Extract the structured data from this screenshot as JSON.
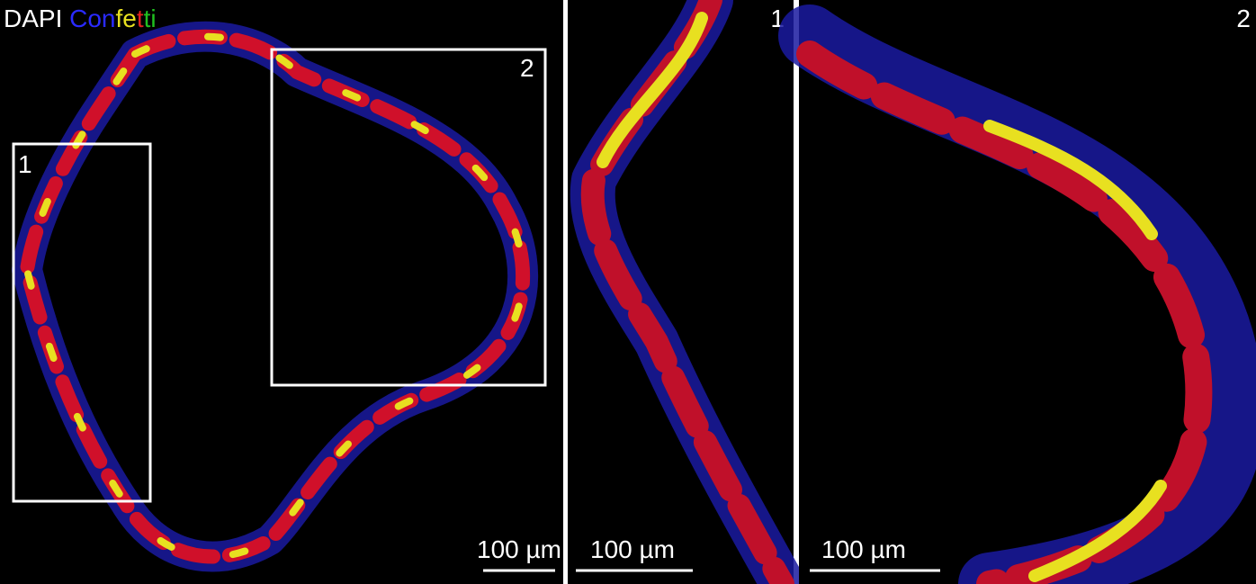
{
  "overview": {
    "stain_label": {
      "dapi": "DAPI",
      "confetti_parts": [
        "Con",
        "fe",
        "t",
        "ti"
      ]
    },
    "boxes": [
      "1",
      "2"
    ],
    "scale_bar": "100 µm"
  },
  "inset_1": {
    "label": "1",
    "scale_bar": "100 µm"
  },
  "inset_2": {
    "label": "2",
    "scale_bar": "100 µm"
  }
}
